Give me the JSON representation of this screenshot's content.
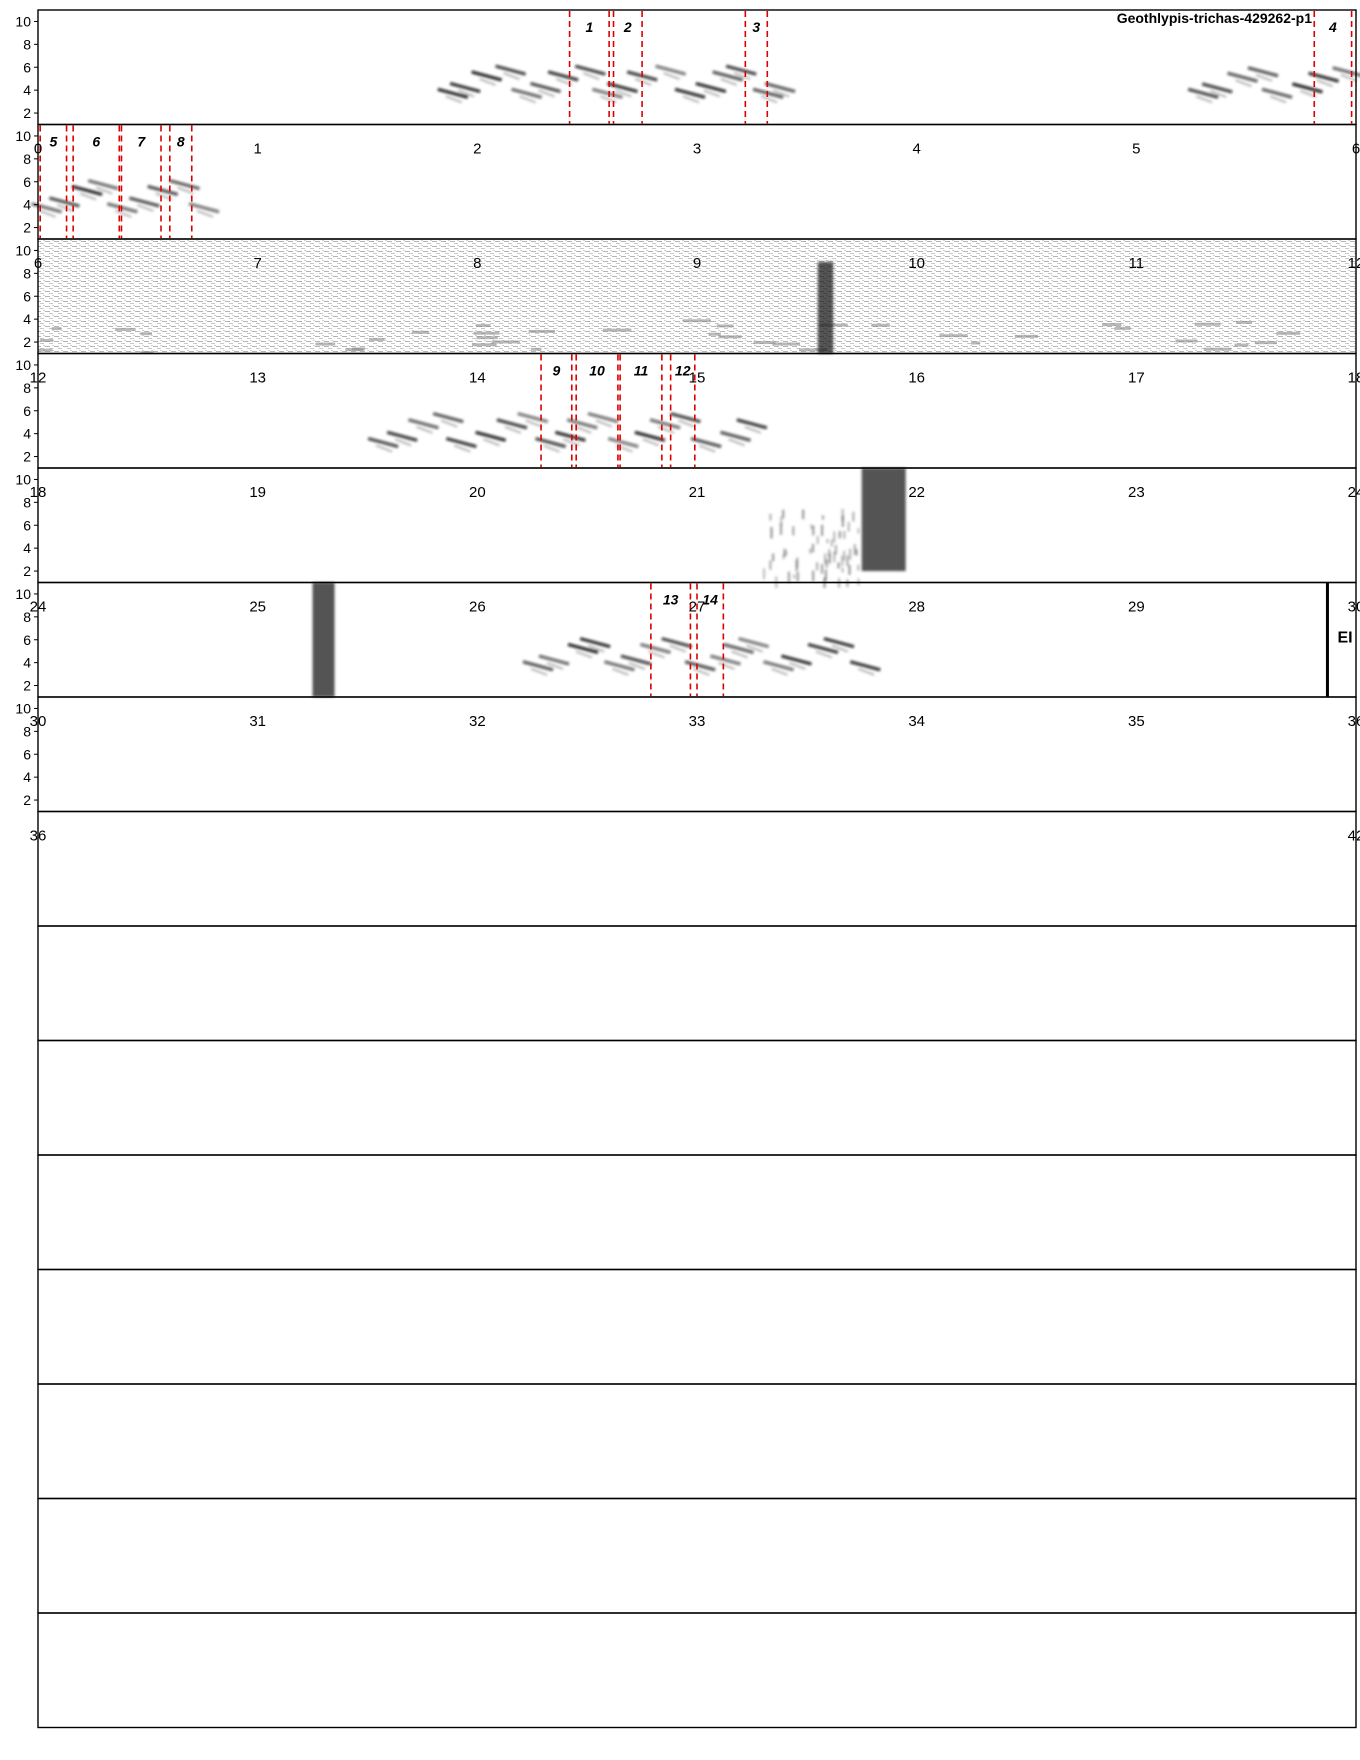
{
  "title": "Geothlypis-trichas-429262-p1",
  "colors": {
    "annotation_line": "#dd0000",
    "spectrogram_ink": "#111111",
    "frame": "#000000"
  },
  "chart_data": {
    "type": "spectrogram",
    "title": "Geothlypis-trichas-429262-p1",
    "xlabel": "",
    "ylabel": "",
    "seconds_per_row": 6,
    "ylim": [
      1,
      11
    ],
    "y_ticks": [
      2,
      4,
      6,
      8,
      10
    ],
    "grid": false,
    "end_marker": {
      "label": "EI",
      "time": 35.87
    },
    "rows": [
      {
        "xlim": [
          0,
          6
        ],
        "tick_labels": [
          "0",
          "1",
          "2",
          "3",
          "4",
          "5",
          "6"
        ]
      },
      {
        "xlim": [
          6,
          12
        ],
        "tick_labels": [
          "6",
          "7",
          "8",
          "9",
          "10",
          "11",
          "12"
        ]
      },
      {
        "xlim": [
          12,
          18
        ],
        "tick_labels": [
          "12",
          "13",
          "14",
          "15",
          "16",
          "17",
          "18"
        ]
      },
      {
        "xlim": [
          18,
          24
        ],
        "tick_labels": [
          "18",
          "19",
          "20",
          "21",
          "22",
          "23",
          "24"
        ]
      },
      {
        "xlim": [
          24,
          30
        ],
        "tick_labels": [
          "24",
          "25",
          "26",
          "27",
          "28",
          "29",
          "30"
        ]
      },
      {
        "xlim": [
          30,
          36
        ],
        "tick_labels": [
          "30",
          "31",
          "32",
          "33",
          "34",
          "35",
          "36"
        ]
      },
      {
        "xlim": [
          36,
          42
        ],
        "tick_labels": [
          "36",
          "",
          "",
          "",
          "",
          "",
          "42"
        ]
      },
      {
        "xlim": [
          42,
          48
        ],
        "tick_labels": []
      },
      {
        "xlim": [
          48,
          54
        ],
        "tick_labels": []
      },
      {
        "xlim": [
          54,
          60
        ],
        "tick_labels": []
      },
      {
        "xlim": [
          60,
          66
        ],
        "tick_labels": []
      },
      {
        "xlim": [
          66,
          72
        ],
        "tick_labels": []
      },
      {
        "xlim": [
          72,
          78
        ],
        "tick_labels": []
      },
      {
        "xlim": [
          78,
          84
        ],
        "tick_labels": []
      },
      {
        "xlim": [
          84,
          90
        ],
        "tick_labels": []
      }
    ],
    "annotations": [
      {
        "label": "1",
        "start": 2.42,
        "end": 2.6
      },
      {
        "label": "2",
        "start": 2.62,
        "end": 2.75
      },
      {
        "label": "3",
        "start": 3.22,
        "end": 3.32
      },
      {
        "label": "4",
        "start": 5.81,
        "end": 5.98
      },
      {
        "label": "5",
        "start": 6.01,
        "end": 6.13
      },
      {
        "label": "6",
        "start": 6.16,
        "end": 6.37
      },
      {
        "label": "7",
        "start": 6.38,
        "end": 6.56
      },
      {
        "label": "8",
        "start": 6.6,
        "end": 6.7
      },
      {
        "label": "9",
        "start": 20.29,
        "end": 20.43
      },
      {
        "label": "10",
        "start": 20.45,
        "end": 20.64
      },
      {
        "label": "11",
        "start": 20.65,
        "end": 20.84
      },
      {
        "label": "12",
        "start": 20.88,
        "end": 20.99
      },
      {
        "label": "13",
        "start": 32.79,
        "end": 32.97
      },
      {
        "label": "14",
        "start": 33.0,
        "end": 33.12
      }
    ],
    "sounds": [
      {
        "start": 1.85,
        "end": 3.45,
        "fmin": 2.5,
        "fmax": 6.8,
        "kind": "song"
      },
      {
        "start": 5.25,
        "end": 6.0,
        "fmin": 2.5,
        "fmax": 6.6,
        "kind": "song"
      },
      {
        "start": 6.0,
        "end": 6.8,
        "fmin": 2.5,
        "fmax": 6.8,
        "kind": "song"
      },
      {
        "start": 19.55,
        "end": 21.3,
        "fmin": 2.0,
        "fmax": 6.5,
        "kind": "song"
      },
      {
        "start": 32.25,
        "end": 33.8,
        "fmin": 2.5,
        "fmax": 6.8,
        "kind": "song"
      },
      {
        "start": 27.75,
        "end": 27.95,
        "fmin": 2.0,
        "fmax": 11.0,
        "kind": "click"
      },
      {
        "start": 31.25,
        "end": 31.35,
        "fmin": 1.0,
        "fmax": 11.0,
        "kind": "click"
      },
      {
        "start": 15.55,
        "end": 15.62,
        "fmin": 1.0,
        "fmax": 9.0,
        "kind": "click"
      },
      {
        "start": 27.3,
        "end": 27.75,
        "fmin": 1.2,
        "fmax": 7.5,
        "kind": "noise"
      },
      {
        "start": 12.0,
        "end": 18.0,
        "fmin": 1.0,
        "fmax": 11.0,
        "kind": "noisy-row"
      }
    ]
  }
}
